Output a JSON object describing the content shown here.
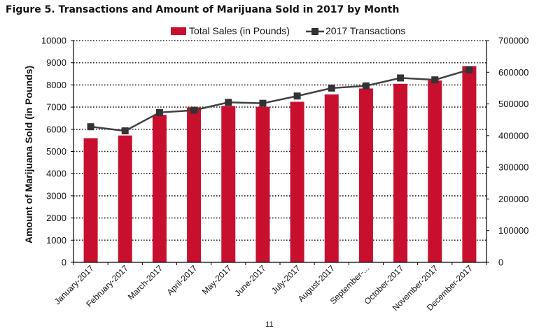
{
  "figure_title": "Figure 5. Transactions and Amount of Marijuana Sold in 2017 by Month",
  "page_number": "11",
  "colors": {
    "bar": "#c8102e",
    "line": "#404040",
    "marker": "#333333",
    "grid": "#222222"
  },
  "chart_data": {
    "type": "bar",
    "categories": [
      "January-2017",
      "February-2017",
      "March-2017",
      "April-2017",
      "May-2017",
      "June-2017",
      "July-2017",
      "August-2017",
      "September-...",
      "October-2017",
      "November-2017",
      "December-2017"
    ],
    "series": [
      {
        "name": "Total Sales (in Pounds)",
        "type": "bar",
        "axis": "left",
        "values": [
          5600,
          5720,
          6650,
          6990,
          7050,
          7010,
          7240,
          7570,
          7840,
          8050,
          8200,
          8850
        ]
      },
      {
        "name": "2017 Transactions",
        "type": "line",
        "axis": "right",
        "values": [
          428000,
          415000,
          473000,
          480000,
          505000,
          502000,
          525000,
          550000,
          557000,
          582000,
          576000,
          608000
        ]
      }
    ],
    "ylabel": "Amount of Marijuana Sold (in Pounds)",
    "ylim": [
      0,
      10000
    ],
    "yticks": [
      "0",
      "1000",
      "2000",
      "3000",
      "4000",
      "5000",
      "6000",
      "7000",
      "8000",
      "9000",
      "10000"
    ],
    "y2lim": [
      0,
      700000
    ],
    "y2ticks": [
      "0",
      "100000",
      "200000",
      "300000",
      "400000",
      "500000",
      "600000",
      "700000"
    ],
    "grid": true,
    "legend": "top-center"
  }
}
